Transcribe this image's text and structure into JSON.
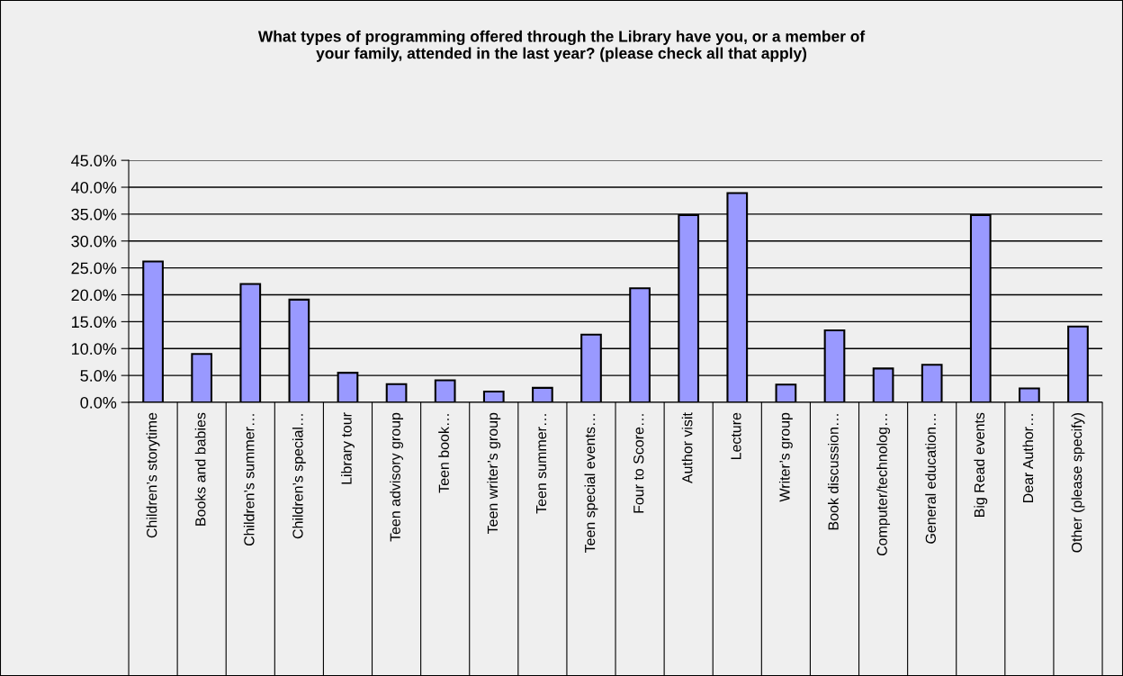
{
  "chart_data": {
    "type": "bar",
    "title": "What types of programming offered through the Library have you, or a member of\nyour family, attended in the last year? (please check all that apply)",
    "categories": [
      "Children’s storytime",
      "Books and babies",
      "Children’s summer…",
      "Children’s special…",
      "Library tour",
      "Teen advisory group",
      "Teen book…",
      "Teen writer’s group",
      "Teen summer…",
      "Teen special events…",
      "Four to Score…",
      "Author visit",
      "Lecture",
      "Writer’s group",
      "Book discussion…",
      "Computer/technolog…",
      "General education…",
      "Big Read events",
      "Dear Author…",
      "Other (please specify)"
    ],
    "values": [
      26.2,
      9.0,
      22.0,
      19.1,
      5.5,
      3.4,
      4.1,
      2.0,
      2.7,
      12.6,
      21.2,
      34.8,
      38.9,
      3.3,
      13.4,
      6.3,
      7.0,
      34.8,
      2.6,
      14.1
    ],
    "color": "#9999ff",
    "ylim": [
      0,
      45
    ],
    "yticks": [
      {
        "value": 0,
        "label": "0.0%"
      },
      {
        "value": 5,
        "label": "5.0%"
      },
      {
        "value": 10,
        "label": "10.0%"
      },
      {
        "value": 15,
        "label": "15.0%"
      },
      {
        "value": 20,
        "label": "20.0%"
      },
      {
        "value": 25,
        "label": "25.0%"
      },
      {
        "value": 30,
        "label": "30.0%"
      },
      {
        "value": 35,
        "label": "35.0%"
      },
      {
        "value": 40,
        "label": "40.0%"
      },
      {
        "value": 45,
        "label": "45.0%"
      }
    ],
    "grid": "y"
  }
}
